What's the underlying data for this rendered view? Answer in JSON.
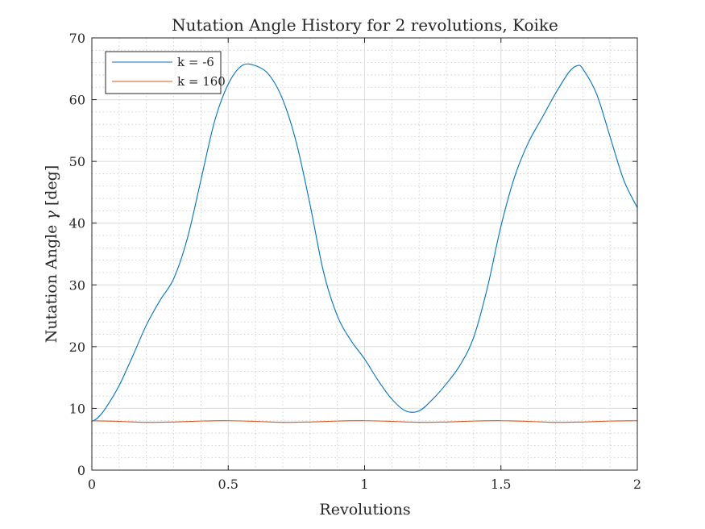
{
  "chart_data": {
    "type": "line",
    "title": "Nutation Angle History for 2 revolutions, Koike",
    "xlabel": "Revolutions",
    "ylabel_main": "Nutation Angle ",
    "ylabel_symbol": "γ",
    "ylabel_unit": " [deg]",
    "xlim": [
      0,
      2
    ],
    "ylim": [
      0,
      70
    ],
    "xticks": [
      0,
      0.5,
      1,
      1.5,
      2
    ],
    "xtick_labels": [
      "0",
      "0.5",
      "1",
      "1.5",
      "2"
    ],
    "yticks": [
      0,
      10,
      20,
      30,
      40,
      50,
      60,
      70
    ],
    "ytick_labels": [
      "0",
      "10",
      "20",
      "30",
      "40",
      "50",
      "60",
      "70"
    ],
    "grid": true,
    "minor_grid": true,
    "legend_position": "top-left",
    "series": [
      {
        "name": "k = -6",
        "color": "#0072BD",
        "x": [
          0,
          0.02,
          0.05,
          0.1,
          0.15,
          0.2,
          0.25,
          0.3,
          0.35,
          0.4,
          0.45,
          0.5,
          0.55,
          0.6,
          0.65,
          0.7,
          0.75,
          0.8,
          0.85,
          0.9,
          0.95,
          1.0,
          1.05,
          1.1,
          1.15,
          1.2,
          1.25,
          1.3,
          1.35,
          1.4,
          1.45,
          1.5,
          1.55,
          1.6,
          1.65,
          1.7,
          1.75,
          1.78,
          1.8,
          1.85,
          1.9,
          1.95,
          2.0
        ],
        "y": [
          7.9,
          8.4,
          10.0,
          13.7,
          18.5,
          23.5,
          27.5,
          31.0,
          37.5,
          47.0,
          56.5,
          62.5,
          65.5,
          65.5,
          64.0,
          60.0,
          53.0,
          43.0,
          32.0,
          25.0,
          21.0,
          18.0,
          14.5,
          11.5,
          9.6,
          9.6,
          11.5,
          14.0,
          17.0,
          21.5,
          29.5,
          39.5,
          47.5,
          53.0,
          57.0,
          61.0,
          64.5,
          65.5,
          65.0,
          61.0,
          54.0,
          47.0,
          42.5
        ]
      },
      {
        "name": "k = 160",
        "color": "#D95319",
        "x": [
          0,
          0.1,
          0.2,
          0.3,
          0.4,
          0.5,
          0.6,
          0.7,
          0.8,
          0.9,
          1.0,
          1.1,
          1.2,
          1.3,
          1.4,
          1.5,
          1.6,
          1.7,
          1.8,
          1.9,
          2.0
        ],
        "y": [
          8.0,
          7.9,
          7.75,
          7.8,
          7.95,
          8.0,
          7.9,
          7.75,
          7.8,
          7.95,
          8.0,
          7.9,
          7.75,
          7.8,
          7.95,
          8.0,
          7.9,
          7.75,
          7.8,
          7.95,
          8.0
        ]
      }
    ]
  }
}
